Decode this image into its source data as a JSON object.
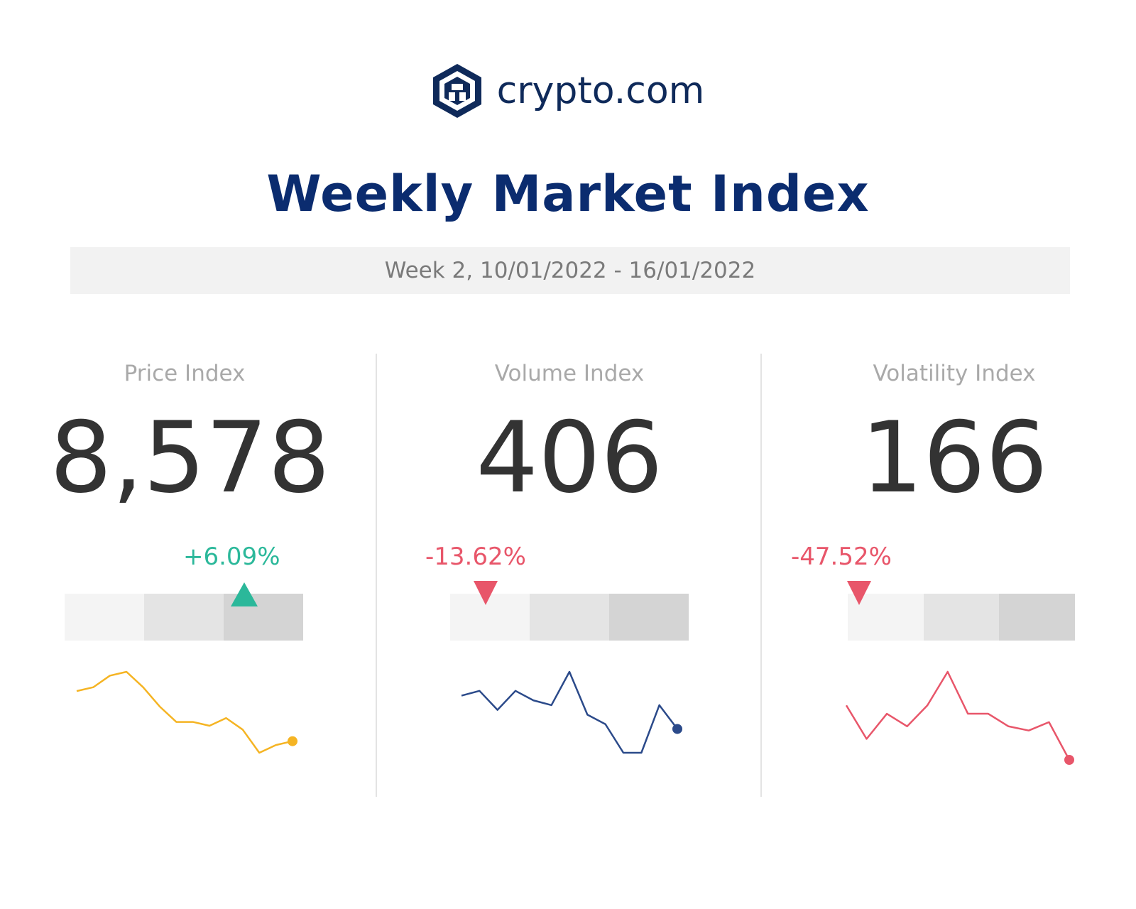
{
  "brand": {
    "name": "crypto.com"
  },
  "title": "Weekly Market Index",
  "week_label": "Week 2, 10/01/2022 - 16/01/2022",
  "colors": {
    "up": "#2bb89a",
    "down": "#e8566a",
    "navy": "#0b2c6f"
  },
  "indices": [
    {
      "label": "Price Index",
      "value": "8,578",
      "change": "+6.09%",
      "direction": "up"
    },
    {
      "label": "Volume Index",
      "value": "406",
      "change": "-13.62%",
      "direction": "down"
    },
    {
      "label": "Volatility Index",
      "value": "166",
      "change": "-47.52%",
      "direction": "down"
    }
  ],
  "chart_data": [
    {
      "type": "line",
      "title": "Price Index sparkline",
      "color": "#f5b423",
      "values": [
        60,
        59,
        56,
        55,
        59,
        64,
        68,
        68,
        69,
        67,
        70,
        76,
        74,
        73
      ],
      "marker_position_pct": 70
    },
    {
      "type": "line",
      "title": "Volume Index sparkline",
      "color": "#2b4a8a",
      "values": [
        68,
        67,
        71,
        67,
        69,
        70,
        63,
        72,
        74,
        80,
        80,
        70,
        75
      ],
      "marker_position_pct": 10
    },
    {
      "type": "line",
      "title": "Volatility Index sparkline",
      "color": "#e8566a",
      "values": [
        66,
        74,
        68,
        71,
        66,
        58,
        68,
        68,
        71,
        72,
        70,
        79
      ],
      "marker_position_pct": 0
    }
  ]
}
